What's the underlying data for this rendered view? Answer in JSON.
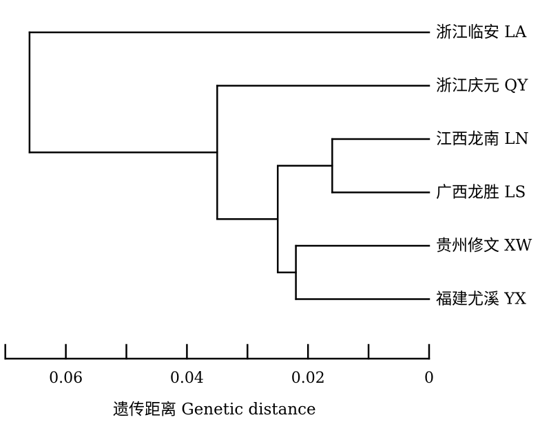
{
  "chart_data": {
    "type": "dendrogram",
    "leaves": [
      {
        "id": "LA",
        "label": "浙江临安 LA"
      },
      {
        "id": "QY",
        "label": "浙江庆元 QY"
      },
      {
        "id": "LN",
        "label": "江西龙南 LN"
      },
      {
        "id": "LS",
        "label": "广西龙胜 LS"
      },
      {
        "id": "XW",
        "label": "贵州修文 XW"
      },
      {
        "id": "YX",
        "label": "福建尤溪 YX"
      }
    ],
    "merges": [
      {
        "id": "n1",
        "children": [
          "LN",
          "LS"
        ],
        "height": 0.016
      },
      {
        "id": "n2",
        "children": [
          "XW",
          "YX"
        ],
        "height": 0.022
      },
      {
        "id": "n3",
        "children": [
          "n1",
          "n2"
        ],
        "height": 0.025
      },
      {
        "id": "n4",
        "children": [
          "QY",
          "n3"
        ],
        "height": 0.035
      },
      {
        "id": "n5",
        "children": [
          "LA",
          "n4"
        ],
        "height": 0.066
      }
    ],
    "xaxis": {
      "label": "遗传距离 Genetic distance",
      "range": [
        0.07,
        0
      ],
      "ticks": [
        0.07,
        0.06,
        0.05,
        0.04,
        0.03,
        0.02,
        0.01,
        0
      ],
      "tick_labels": [
        {
          "value": 0.06,
          "text": "0.06"
        },
        {
          "value": 0.04,
          "text": "0.04"
        },
        {
          "value": 0.02,
          "text": "0.02"
        },
        {
          "value": 0,
          "text": "0"
        }
      ]
    },
    "line_color": "#000000"
  }
}
